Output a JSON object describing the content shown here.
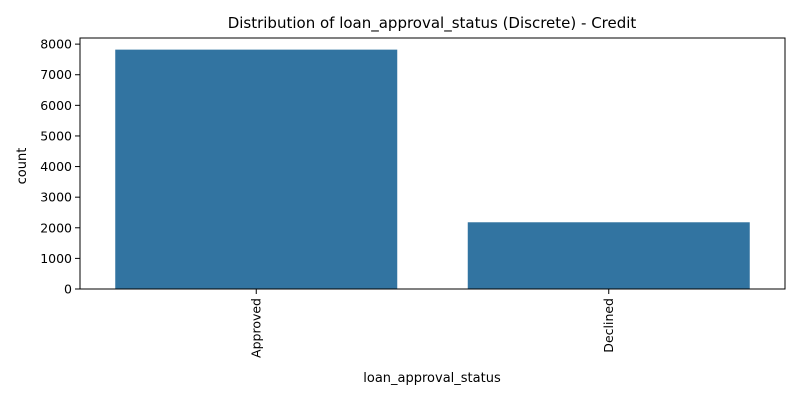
{
  "chart_data": {
    "type": "bar",
    "title": "Distribution of loan_approval_status (Discrete) - Credit",
    "xlabel": "loan_approval_status",
    "ylabel": "count",
    "categories": [
      "Approved",
      "Declined"
    ],
    "values": [
      7820,
      2180
    ],
    "ylim": [
      0,
      8200
    ],
    "yticks": [
      0,
      1000,
      2000,
      3000,
      4000,
      5000,
      6000,
      7000,
      8000
    ],
    "bar_color": "#3274a1",
    "grid": false,
    "legend": "none"
  }
}
